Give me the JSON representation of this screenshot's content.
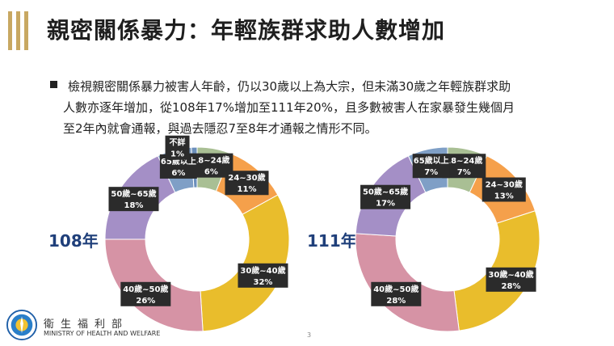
{
  "title": "親密關係暴力：年輕族群求助人數增加",
  "bullet_lines": [
    "檢視親密關係暴力被害人年齡，仍以30歲以上為大宗，但未滿30歲之年輕族群求助",
    "人數亦逐年增加，從108年17%增加至111年20%，且多數被害人在家暴發生幾個月",
    "至2年內就會通報，與過去隱忍7至8年才通報之情形不同。"
  ],
  "chart_data": [
    {
      "type": "pie",
      "donut": true,
      "title": "108年",
      "categories": [
        "18~24歲",
        "24~30歲",
        "30歲~40歲",
        "40歲~50歲",
        "50歲~65歲",
        "65歲以上",
        "不詳"
      ],
      "values": [
        6,
        11,
        32,
        26,
        18,
        6,
        1
      ],
      "labels": [
        "6%",
        "11%",
        "32%",
        "26%",
        "18%",
        "6%",
        "1%"
      ],
      "colors": [
        "#a9bf94",
        "#f5a04b",
        "#e9bd2c",
        "#d693a5",
        "#a48fc6",
        "#7f9fc6",
        "#6b8fbb"
      ]
    },
    {
      "type": "pie",
      "donut": true,
      "title": "111年",
      "categories": [
        "18~24歲",
        "24~30歲",
        "30歲~40歲",
        "40歲~50歲",
        "50歲~65歲",
        "65歲以上"
      ],
      "values": [
        7,
        13,
        28,
        28,
        17,
        7
      ],
      "labels": [
        "7%",
        "13%",
        "28%",
        "28%",
        "17%",
        "7%"
      ],
      "colors": [
        "#a9bf94",
        "#f5a04b",
        "#e9bd2c",
        "#d693a5",
        "#a48fc6",
        "#7f9fc6"
      ]
    }
  ],
  "footer": {
    "org_cn": "衛生福利部",
    "org_en": "MINISTRY OF HEALTH AND WELFARE",
    "page_number": "3"
  }
}
